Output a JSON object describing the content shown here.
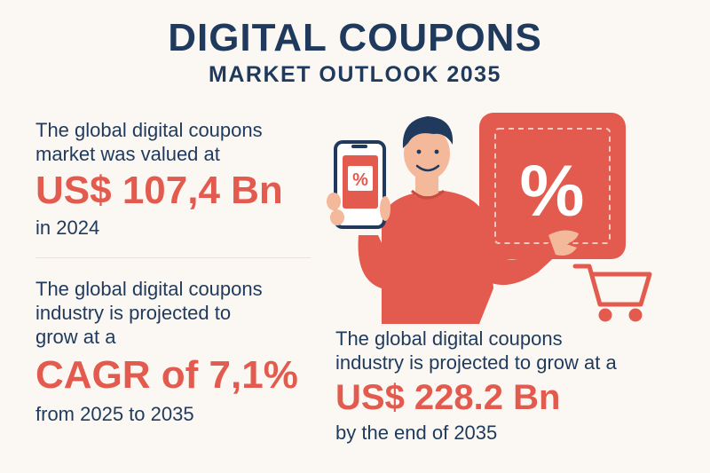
{
  "header": {
    "title": "DIGITAL COUPONS",
    "subtitle": "MARKET OUTLOOK 2035"
  },
  "stats": [
    {
      "intro": [
        "The global digital coupons",
        "market was valued at"
      ],
      "value": "US$ 107,4 Bn",
      "suffix": "in 2024"
    },
    {
      "intro": [
        "The global digital coupons",
        "industry is projected to",
        "grow at a"
      ],
      "value": "CAGR of 7,1%",
      "suffix": "from 2025 to 2035"
    },
    {
      "intro": [
        "The global digital coupons",
        "industry is projected to grow at a"
      ],
      "value": "US$ 228.2 Bn",
      "suffix": "by the end of 2035"
    }
  ],
  "illustration": {
    "phone_badge": "%",
    "coupon_symbol": "%"
  },
  "icons": [
    "person-icon",
    "smartphone-icon",
    "coupon-icon",
    "shopping-cart-icon"
  ],
  "colors": {
    "navy": "#1f3a5c",
    "accent": "#e35a4e",
    "background": "#fbf8f3"
  }
}
